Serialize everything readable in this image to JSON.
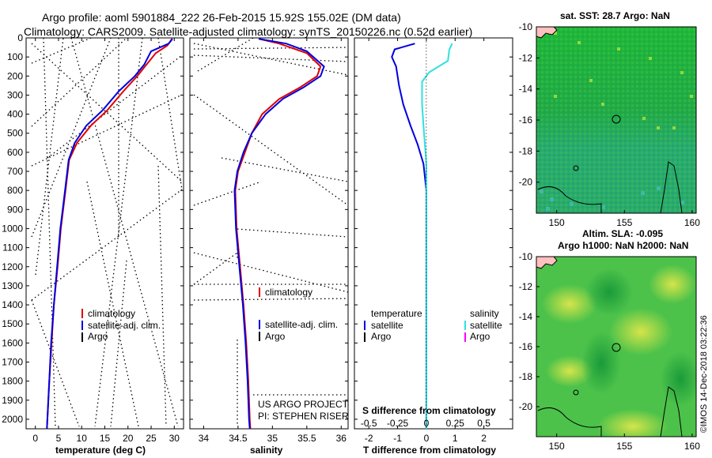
{
  "title_line1": "Argo profile: aoml 5901884_222 26-Feb-2015 15.92S 155.02E (DM data)",
  "title_line2": "Climatology: CARS2009. Satellite-adjusted climatology: synTS_20150226.nc (0.52d earlier)",
  "credit1": "US ARGO PROJECT",
  "credit2": "PI: STEPHEN RISER",
  "watermark": "©IMOS 14-Dec-2018 03:22:36",
  "colors": {
    "climatology": "#e00000",
    "satellite": "#0000e0",
    "argo": "#000000",
    "sal_satellite": "#30e0e0",
    "sal_argo": "#ff00ff"
  },
  "chart_data": [
    {
      "type": "line",
      "name": "temperature-profile",
      "xlabel": "temperature (deg C)",
      "xlim": [
        -2,
        32
      ],
      "ylim": [
        0,
        2050
      ],
      "y_inverted": true,
      "xticks": [
        0,
        5,
        10,
        15,
        20,
        25,
        30
      ],
      "yticks": [
        0,
        100,
        200,
        300,
        400,
        500,
        600,
        700,
        800,
        900,
        1000,
        1100,
        1200,
        1300,
        1400,
        1500,
        1600,
        1700,
        1800,
        1900,
        2000
      ],
      "legend": [
        "climatology",
        "satellite-adj. clim.",
        "Argo"
      ],
      "series": [
        {
          "name": "climatology",
          "points": [
            [
              29.5,
              5
            ],
            [
              28.5,
              40
            ],
            [
              26,
              80
            ],
            [
              24,
              140
            ],
            [
              22,
              200
            ],
            [
              19,
              280
            ],
            [
              15.5,
              380
            ],
            [
              12,
              460
            ],
            [
              9,
              550
            ],
            [
              7.3,
              640
            ],
            [
              6.5,
              800
            ],
            [
              5.5,
              1000
            ],
            [
              4.8,
              1200
            ],
            [
              4,
              1400
            ],
            [
              3.5,
              1600
            ],
            [
              3,
              1800
            ],
            [
              2.6,
              2000
            ],
            [
              2.5,
              2050
            ]
          ]
        },
        {
          "name": "satellite-adj. clim.",
          "points": [
            [
              29.6,
              5
            ],
            [
              28.8,
              30
            ],
            [
              25,
              70
            ],
            [
              23.5,
              140
            ],
            [
              21.5,
              200
            ],
            [
              18,
              280
            ],
            [
              14.5,
              380
            ],
            [
              11,
              460
            ],
            [
              8.5,
              550
            ],
            [
              7.2,
              640
            ],
            [
              6.4,
              800
            ],
            [
              5.4,
              1000
            ],
            [
              4.7,
              1200
            ],
            [
              4,
              1400
            ],
            [
              3.4,
              1600
            ],
            [
              3,
              1800
            ],
            [
              2.6,
              2000
            ],
            [
              2.5,
              2050
            ]
          ]
        }
      ]
    },
    {
      "type": "line",
      "name": "salinity-profile",
      "xlabel": "salinity",
      "xlim": [
        33.8,
        36.1
      ],
      "ylim": [
        0,
        2050
      ],
      "y_inverted": true,
      "xticks": [
        34,
        34.5,
        35,
        35.5,
        36
      ],
      "xtick_labels": [
        "34",
        "34.5",
        "35",
        "35.5",
        "36"
      ],
      "legend": [
        "climatology",
        "satellite-adj. clim.",
        "Argo"
      ],
      "series": [
        {
          "name": "climatology",
          "points": [
            [
              34.8,
              5
            ],
            [
              35.1,
              30
            ],
            [
              35.5,
              80
            ],
            [
              35.7,
              150
            ],
            [
              35.65,
              200
            ],
            [
              35.4,
              260
            ],
            [
              35.1,
              320
            ],
            [
              34.85,
              400
            ],
            [
              34.7,
              500
            ],
            [
              34.6,
              600
            ],
            [
              34.5,
              700
            ],
            [
              34.46,
              800
            ],
            [
              34.48,
              1000
            ],
            [
              34.53,
              1200
            ],
            [
              34.58,
              1400
            ],
            [
              34.62,
              1600
            ],
            [
              34.65,
              1800
            ],
            [
              34.67,
              2000
            ],
            [
              34.68,
              2050
            ]
          ]
        },
        {
          "name": "satellite-adj. clim.",
          "points": [
            [
              34.8,
              5
            ],
            [
              35.2,
              30
            ],
            [
              35.5,
              70
            ],
            [
              35.75,
              150
            ],
            [
              35.7,
              200
            ],
            [
              35.45,
              260
            ],
            [
              35.15,
              320
            ],
            [
              34.9,
              400
            ],
            [
              34.7,
              500
            ],
            [
              34.58,
              600
            ],
            [
              34.49,
              700
            ],
            [
              34.45,
              800
            ],
            [
              34.47,
              1000
            ],
            [
              34.52,
              1200
            ],
            [
              34.57,
              1400
            ],
            [
              34.61,
              1600
            ],
            [
              34.64,
              1800
            ],
            [
              34.66,
              2000
            ],
            [
              34.67,
              2050
            ]
          ]
        }
      ]
    },
    {
      "type": "line",
      "name": "difference-profile",
      "xlabel": "T difference from climatology",
      "xlabel_top": "S difference from climatology",
      "xlim": [
        -2.5,
        3
      ],
      "ylim": [
        0,
        2050
      ],
      "y_inverted": true,
      "xticks": [
        -2,
        -1,
        0,
        1,
        2
      ],
      "top_ticks": [
        "-0.5",
        "-0.25",
        "0",
        "0.25",
        "0.5"
      ],
      "top_tick_positions_T": [
        -2,
        -1,
        0,
        1,
        2
      ],
      "legend_left_title": "temperature",
      "legend_left": [
        "satellite",
        "Argo"
      ],
      "legend_right_title": "salinity",
      "legend_right": [
        "satellite",
        "Argo"
      ],
      "series": [
        {
          "name": "temperature satellite",
          "points": [
            [
              -0.4,
              30
            ],
            [
              -1.1,
              60
            ],
            [
              -1.2,
              100
            ],
            [
              -1.05,
              150
            ],
            [
              -0.95,
              250
            ],
            [
              -0.8,
              350
            ],
            [
              -0.55,
              460
            ],
            [
              -0.3,
              560
            ],
            [
              -0.1,
              660
            ],
            [
              0,
              800
            ],
            [
              0,
              2050
            ]
          ]
        },
        {
          "name": "salinity satellite",
          "points": [
            [
              0.9,
              30
            ],
            [
              0.8,
              60
            ],
            [
              0.75,
              120
            ],
            [
              0.1,
              180
            ],
            [
              -0.15,
              230
            ],
            [
              -0.15,
              350
            ],
            [
              -0.1,
              460
            ],
            [
              -0.05,
              560
            ],
            [
              0,
              660
            ],
            [
              0,
              800
            ],
            [
              0,
              2050
            ]
          ]
        }
      ]
    },
    {
      "type": "heatmap",
      "name": "sst-map",
      "title": "sat. SST: 28.7 Argo: NaN",
      "xticks": [
        150,
        155,
        160
      ],
      "yticks": [
        -10,
        -12,
        -14,
        -16,
        -18,
        -20
      ],
      "xlim": [
        148.5,
        160.3
      ],
      "ylim": [
        -22,
        -10
      ],
      "marker_lonlat": [
        155.02,
        -15.92
      ]
    },
    {
      "type": "heatmap",
      "name": "sla-map",
      "title": "Altim. SLA: -0.095",
      "subtitle": "Argo h1000: NaN h2000: NaN",
      "xticks": [
        150,
        155,
        160
      ],
      "yticks": [
        -10,
        -12,
        -14,
        -16,
        -18,
        -20
      ],
      "xlim": [
        148.5,
        160.3
      ],
      "ylim": [
        -22,
        -10
      ],
      "marker_lonlat": [
        155.02,
        -15.92
      ]
    }
  ]
}
